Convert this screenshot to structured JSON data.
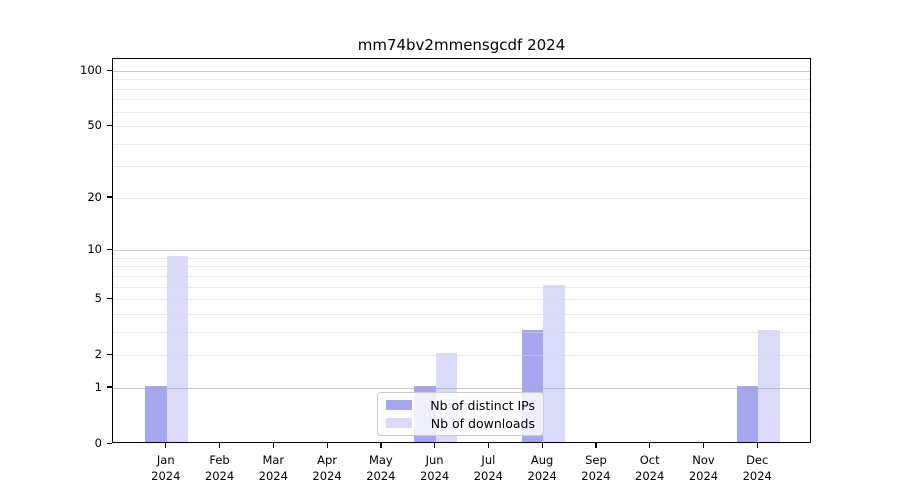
{
  "title": "mm74bv2mmensgcdf 2024",
  "chart_data": {
    "type": "bar",
    "title": "mm74bv2mmensgcdf 2024",
    "yscale": "log1p",
    "grid": true,
    "categories": [
      "Jan 2024",
      "Feb 2024",
      "Mar 2024",
      "Apr 2024",
      "May 2024",
      "Jun 2024",
      "Jul 2024",
      "Aug 2024",
      "Sep 2024",
      "Oct 2024",
      "Nov 2024",
      "Dec 2024"
    ],
    "x_tick_months": [
      "Jan",
      "Feb",
      "Mar",
      "Apr",
      "May",
      "Jun",
      "Jul",
      "Aug",
      "Sep",
      "Oct",
      "Nov",
      "Dec"
    ],
    "x_tick_year": "2024",
    "series": [
      {
        "name": "Nb of distinct IPs",
        "color": "#a5a5f0",
        "values": [
          1,
          0,
          0,
          0,
          0,
          1,
          0,
          3,
          0,
          0,
          0,
          1
        ]
      },
      {
        "name": "Nb of downloads",
        "color": "#d9d9f8",
        "values": [
          9,
          0,
          0,
          0,
          0,
          2,
          0,
          6,
          0,
          0,
          0,
          3
        ]
      }
    ],
    "ytick_values": [
      0,
      1,
      2,
      5,
      10,
      20,
      50,
      100
    ],
    "major_gridline_values": [
      1,
      10,
      100
    ],
    "minor_gridline_values": [
      2,
      3,
      4,
      5,
      6,
      7,
      8,
      9,
      20,
      30,
      40,
      50,
      60,
      70,
      80,
      90
    ],
    "ylim": [
      0,
      116
    ],
    "legend": {
      "position": "bottom-center",
      "entries": [
        "Nb of distinct IPs",
        "Nb of downloads"
      ]
    }
  }
}
